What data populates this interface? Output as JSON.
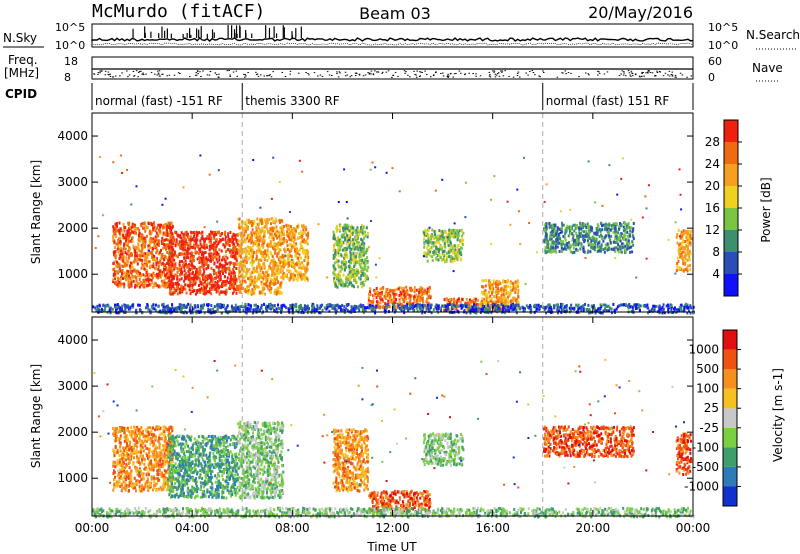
{
  "header": {
    "station": "McMurdo (fitACF)",
    "beam": "Beam 03",
    "date": "20/May/2016"
  },
  "nsky": {
    "label": "N.Sky",
    "ytick_top": "10^5",
    "ytick_bottom": "10^0",
    "right_label": "N.Search",
    "right_tick_top": "10^5",
    "right_tick_bottom": "10^0"
  },
  "freq": {
    "label_line1": "Freq.",
    "label_line2": "[MHz]",
    "ytick_top": "18",
    "ytick_bottom": "8",
    "right_label": "Nave",
    "right_tick_top": "60",
    "right_tick_bottom": "0"
  },
  "cpid": {
    "label": "CPID",
    "segments": [
      {
        "name": "normal (fast) -151 RF",
        "start_h": 0,
        "end_h": 6
      },
      {
        "name": "themis 3300 RF",
        "start_h": 6,
        "end_h": 18
      },
      {
        "name": "normal (fast) 151 RF",
        "start_h": 18,
        "end_h": 24
      }
    ]
  },
  "chart_data": [
    {
      "type": "heatmap",
      "title": "",
      "xlabel": "Time UT",
      "ylabel": "Slant Range [km]",
      "xlim": [
        0,
        24
      ],
      "ylim": [
        180,
        4500
      ],
      "x_ticks": [
        "00:00",
        "04:00",
        "08:00",
        "12:00",
        "16:00",
        "20:00",
        "00:00"
      ],
      "y_ticks": [
        "1000",
        "2000",
        "3000",
        "4000"
      ],
      "y_tick_values": [
        1000,
        2000,
        3000,
        4000
      ],
      "colorbar": {
        "label": "Power [dB]",
        "ticks": [
          "4",
          "8",
          "12",
          "16",
          "20",
          "24",
          "28"
        ],
        "colors": [
          "#1010ff",
          "#2a4db8",
          "#3c8f6e",
          "#7ac443",
          "#f0d020",
          "#f7a020",
          "#f06a10",
          "#ef2010"
        ]
      },
      "regions": [
        {
          "t0": 0.8,
          "t1": 3.2,
          "r0": 750,
          "r1": 2150,
          "level": 6
        },
        {
          "t0": 3.0,
          "t1": 5.8,
          "r0": 600,
          "r1": 1950,
          "level": 7
        },
        {
          "t0": 5.8,
          "t1": 7.6,
          "r0": 600,
          "r1": 2250,
          "level": 5
        },
        {
          "t0": 7.6,
          "t1": 8.6,
          "r0": 900,
          "r1": 2100,
          "level": 5
        },
        {
          "t0": 9.6,
          "t1": 11.0,
          "r0": 750,
          "r1": 2100,
          "level": 3
        },
        {
          "t0": 11.0,
          "t1": 13.5,
          "r0": 300,
          "r1": 750,
          "level": 6
        },
        {
          "t0": 13.2,
          "t1": 14.8,
          "r0": 1300,
          "r1": 2000,
          "level": 3
        },
        {
          "t0": 14.0,
          "t1": 16.5,
          "r0": 250,
          "r1": 500,
          "level": 6
        },
        {
          "t0": 15.5,
          "t1": 17.0,
          "r0": 250,
          "r1": 900,
          "level": 5
        },
        {
          "t0": 18.0,
          "t1": 21.6,
          "r0": 1500,
          "r1": 2150,
          "level": 2
        },
        {
          "t0": 23.3,
          "t1": 23.9,
          "r0": 1100,
          "r1": 2000,
          "level": 5
        },
        {
          "t0": 0.0,
          "t1": 24.0,
          "r0": 190,
          "r1": 380,
          "level": 1
        }
      ]
    },
    {
      "type": "heatmap",
      "title": "",
      "xlabel": "Time UT",
      "ylabel": "Slant Range [km]",
      "xlim": [
        0,
        24
      ],
      "ylim": [
        180,
        4500
      ],
      "x_ticks": [
        "00:00",
        "04:00",
        "08:00",
        "12:00",
        "16:00",
        "20:00",
        "00:00"
      ],
      "y_ticks": [
        "1000",
        "2000",
        "3000",
        "4000"
      ],
      "y_tick_values": [
        1000,
        2000,
        3000,
        4000
      ],
      "colorbar": {
        "label": "Velocity [m s-1]",
        "ticks": [
          "1000",
          "500",
          "100",
          "25",
          "-25",
          "-100",
          "-500",
          "-1000"
        ],
        "colors": [
          "#1030d0",
          "#2e7bb8",
          "#3f9e6a",
          "#7ad040",
          "#c8c8c8",
          "#f5c020",
          "#f59020",
          "#f05010",
          "#e01010"
        ]
      },
      "regions": [
        {
          "t0": 0.8,
          "t1": 3.2,
          "r0": 750,
          "r1": 2150,
          "level": 6
        },
        {
          "t0": 3.0,
          "t1": 5.8,
          "r0": 600,
          "r1": 1950,
          "level": 2
        },
        {
          "t0": 5.8,
          "t1": 7.6,
          "r0": 600,
          "r1": 2250,
          "level": 3
        },
        {
          "t0": 9.6,
          "t1": 11.0,
          "r0": 750,
          "r1": 2100,
          "level": 6
        },
        {
          "t0": 11.0,
          "t1": 13.5,
          "r0": 300,
          "r1": 750,
          "level": 7
        },
        {
          "t0": 13.2,
          "t1": 14.8,
          "r0": 1300,
          "r1": 2000,
          "level": 3
        },
        {
          "t0": 18.0,
          "t1": 21.6,
          "r0": 1500,
          "r1": 2150,
          "level": 7
        },
        {
          "t0": 23.3,
          "t1": 23.9,
          "r0": 1100,
          "r1": 2000,
          "level": 7
        },
        {
          "t0": 0.0,
          "t1": 24.0,
          "r0": 190,
          "r1": 380,
          "level": 3
        }
      ]
    }
  ]
}
